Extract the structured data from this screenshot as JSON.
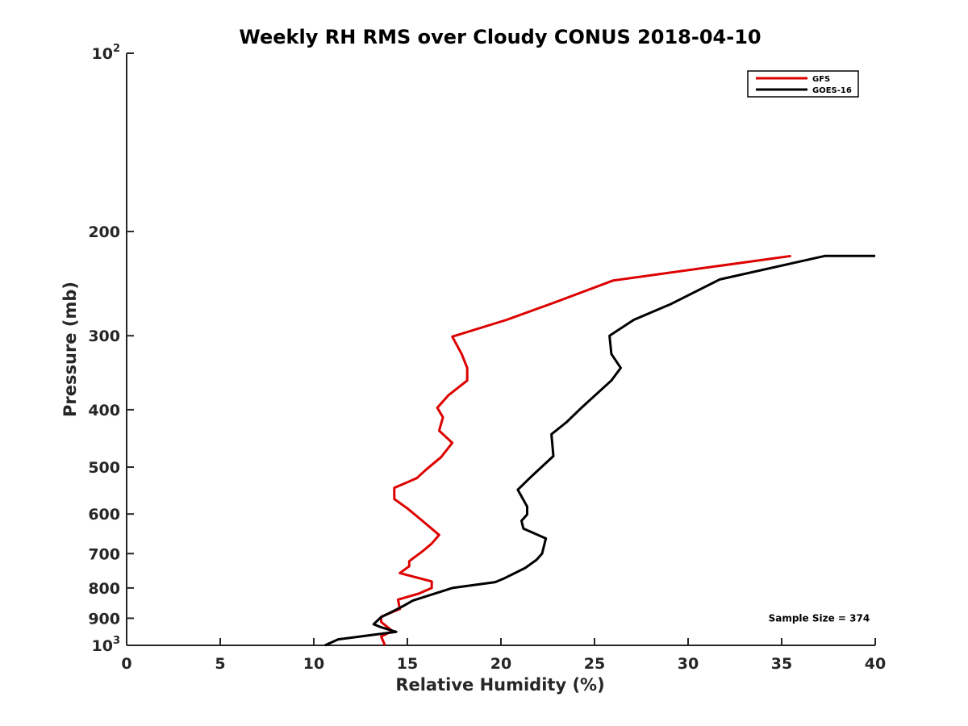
{
  "chart_data": {
    "type": "line",
    "title": "Weekly RH RMS over Cloudy CONUS 2018-04-10",
    "xlabel": "Relative Humidity (%)",
    "ylabel": "Pressure (mb)",
    "xlim": [
      0,
      40
    ],
    "ylim": [
      100,
      1000
    ],
    "y_scale": "log",
    "y_reversed": true,
    "grid": false,
    "legend_position": "top-right",
    "x_ticks": [
      "0",
      "5",
      "10",
      "15",
      "20",
      "25",
      "30",
      "35",
      "40"
    ],
    "y_ticks": [
      {
        "value": 100,
        "base": "10",
        "exp": "2"
      },
      {
        "value": 200,
        "base": "200",
        "exp": ""
      },
      {
        "value": 300,
        "base": "300",
        "exp": ""
      },
      {
        "value": 400,
        "base": "400",
        "exp": ""
      },
      {
        "value": 500,
        "base": "500",
        "exp": ""
      },
      {
        "value": 600,
        "base": "600",
        "exp": ""
      },
      {
        "value": 700,
        "base": "700",
        "exp": ""
      },
      {
        "value": 800,
        "base": "800",
        "exp": ""
      },
      {
        "value": 900,
        "base": "900",
        "exp": ""
      },
      {
        "value": 1000,
        "base": "10",
        "exp": "3"
      }
    ],
    "series": [
      {
        "name": "GFS",
        "color": "#dd0000",
        "points": [
          [
            35.5,
            220
          ],
          [
            26.0,
            242
          ],
          [
            22.8,
            264
          ],
          [
            20.3,
            282
          ],
          [
            17.4,
            301
          ],
          [
            17.9,
            322
          ],
          [
            18.2,
            340
          ],
          [
            18.2,
            357
          ],
          [
            17.2,
            378
          ],
          [
            16.6,
            397
          ],
          [
            16.9,
            412
          ],
          [
            16.7,
            434
          ],
          [
            17.4,
            455
          ],
          [
            16.8,
            481
          ],
          [
            16.0,
            505
          ],
          [
            15.5,
            522
          ],
          [
            14.3,
            542
          ],
          [
            14.3,
            566
          ],
          [
            15.0,
            587
          ],
          [
            15.8,
            616
          ],
          [
            16.7,
            651
          ],
          [
            16.3,
            673
          ],
          [
            15.8,
            694
          ],
          [
            15.1,
            721
          ],
          [
            15.1,
            735
          ],
          [
            14.6,
            755
          ],
          [
            16.3,
            780
          ],
          [
            16.3,
            800
          ],
          [
            15.6,
            818
          ],
          [
            14.5,
            837
          ],
          [
            14.6,
            868
          ],
          [
            13.6,
            895
          ],
          [
            13.6,
            913
          ],
          [
            14.2,
            946
          ],
          [
            13.6,
            966
          ],
          [
            13.8,
            1000
          ]
        ]
      },
      {
        "name": "GOES-16",
        "color": "#000000",
        "points": [
          [
            40.0,
            220
          ],
          [
            37.3,
            220
          ],
          [
            31.7,
            241
          ],
          [
            29.1,
            265
          ],
          [
            27.1,
            282
          ],
          [
            25.8,
            300
          ],
          [
            25.9,
            322
          ],
          [
            26.4,
            340
          ],
          [
            25.9,
            357
          ],
          [
            24.3,
            397
          ],
          [
            23.5,
            420
          ],
          [
            22.7,
            440
          ],
          [
            22.8,
            479
          ],
          [
            21.7,
            516
          ],
          [
            20.9,
            546
          ],
          [
            21.4,
            583
          ],
          [
            21.4,
            601
          ],
          [
            21.1,
            616
          ],
          [
            21.2,
            635
          ],
          [
            22.4,
            660
          ],
          [
            22.2,
            700
          ],
          [
            21.9,
            717
          ],
          [
            21.3,
            740
          ],
          [
            20.2,
            770
          ],
          [
            19.7,
            782
          ],
          [
            17.4,
            800
          ],
          [
            15.3,
            840
          ],
          [
            14.7,
            861
          ],
          [
            13.6,
            896
          ],
          [
            13.2,
            921
          ],
          [
            13.6,
            932
          ],
          [
            14.4,
            949
          ],
          [
            11.3,
            977
          ],
          [
            10.6,
            1000
          ]
        ]
      }
    ],
    "annotations": [
      {
        "text": "Sample Size = 374",
        "x": 37.0,
        "y": 900
      }
    ]
  }
}
